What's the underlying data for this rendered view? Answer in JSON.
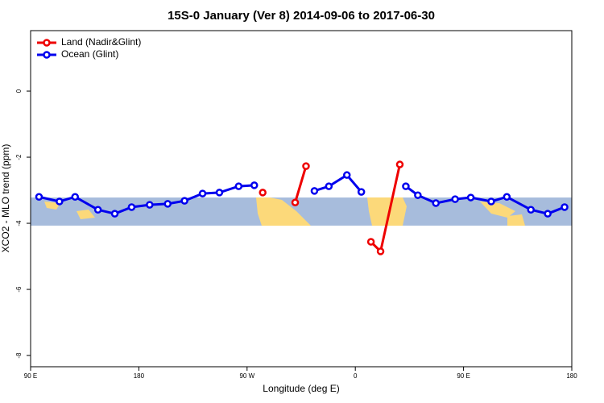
{
  "chart_data": {
    "type": "line",
    "title": "15S-0 January (Ver 8)   2014-09-06 to 2017-06-30",
    "x_label": "Longitude (deg E)",
    "y_label": "XCO2 - MLO trend (ppm)",
    "xlim": [
      90,
      540
    ],
    "ylim": [
      -8.34,
      1.83
    ],
    "xticks": [
      {
        "value": 90,
        "label": "90 E"
      },
      180,
      {
        "value": 270,
        "label": "90 W"
      },
      {
        "value": 360,
        "label": "0"
      },
      {
        "value": 450,
        "label": "90 E"
      },
      {
        "value": 540,
        "label": "180"
      }
    ],
    "yticks": [
      0,
      -2,
      -4,
      -6,
      -8
    ],
    "band": {
      "ymin": -4.07,
      "ymax": -3.22,
      "color": "#a7bcdc"
    },
    "legend": "top-left",
    "series": [
      {
        "name": "Land (Nadir&Glint)",
        "color": "#ee0000",
        "x": [
          283,
          null,
          310,
          319,
          null,
          373,
          381,
          397
        ],
        "values": [
          -3.07,
          null,
          -3.37,
          -2.27,
          null,
          -4.56,
          -4.85,
          -2.22
        ]
      },
      {
        "name": "Ocean (Glint)",
        "color": "#0000ee",
        "x": [
          97,
          114,
          127,
          146,
          160,
          174,
          189,
          204,
          218,
          233,
          247,
          263,
          276,
          null,
          326,
          338,
          353,
          365,
          null,
          402,
          412,
          427,
          443,
          456,
          473,
          486,
          506,
          520,
          534
        ],
        "values": [
          -3.2,
          -3.34,
          -3.2,
          -3.59,
          -3.71,
          -3.51,
          -3.44,
          -3.41,
          -3.32,
          -3.1,
          -3.07,
          -2.88,
          -2.85,
          null,
          -3.02,
          -2.88,
          -2.54,
          -3.05,
          null,
          -2.88,
          -3.15,
          -3.39,
          -3.27,
          -3.22,
          -3.34,
          -3.2,
          -3.59,
          -3.71,
          -3.51
        ]
      }
    ]
  }
}
